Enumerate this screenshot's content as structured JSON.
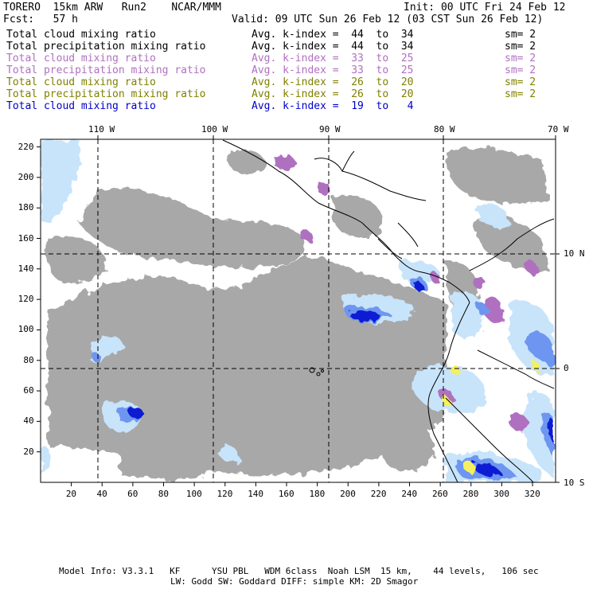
{
  "header": {
    "model": "TORERO  15km ARW   Run2    NCAR/MMM",
    "init": "Init: 00 UTC Fri 24 Feb 12",
    "fcst": "Fcst:   57 h",
    "valid": "Valid: 09 UTC Sun 26 Feb 12 (03 CST Sun 26 Feb 12)"
  },
  "fields": [
    {
      "name": "Total cloud mixing ratio",
      "kindex": "Avg. k-index =  44  to  34",
      "sm": "sm= 2",
      "color": "#000000"
    },
    {
      "name": "Total precipitation mixing ratio",
      "kindex": "Avg. k-index =  44  to  34",
      "sm": "sm= 2",
      "color": "#000000"
    },
    {
      "name": "Total cloud mixing ratio",
      "kindex": "Avg. k-index =  33  to  25",
      "sm": "sm= 2",
      "color": "#b070c0"
    },
    {
      "name": "Total precipitation mixing ratio",
      "kindex": "Avg. k-index =  33  to  25",
      "sm": "sm= 2",
      "color": "#b070c0"
    },
    {
      "name": "Total cloud mixing ratio",
      "kindex": "Avg. k-index =  26  to  20",
      "sm": "sm= 2",
      "color": "#808000"
    },
    {
      "name": "Total precipitation mixing ratio",
      "kindex": "Avg. k-index =  26  to  20",
      "sm": "sm= 2",
      "color": "#808000"
    },
    {
      "name": "Total cloud mixing ratio",
      "kindex": "Avg. k-index =  19  to   4",
      "sm": "",
      "color": "#0000cc"
    }
  ],
  "axes": {
    "lon_labels": [
      "110 W",
      "100 W",
      "90 W",
      "80 W",
      "70 W"
    ],
    "lat_labels": [
      "10 N",
      "0",
      "10 S"
    ],
    "x_ticks": [
      "20",
      "40",
      "60",
      "80",
      "100",
      "120",
      "140",
      "160",
      "180",
      "200",
      "220",
      "240",
      "260",
      "280",
      "300",
      "320"
    ],
    "y_ticks": [
      "220",
      "200",
      "180",
      "160",
      "140",
      "120",
      "100",
      "80",
      "60",
      "40",
      "20"
    ],
    "x_range": [
      0,
      335
    ],
    "y_range": [
      0,
      225
    ]
  },
  "colors": {
    "gray_cloud": "#a8a8a8",
    "purple": "#b070c0",
    "light_blue": "#c8e4fb",
    "mid_blue": "#6e96f0",
    "deep_blue": "#0a1ad2",
    "yellow": "#f4f060"
  },
  "footer": {
    "line1": "Model Info: V3.3.1   KF      YSU PBL   WDM 6class  Noah LSM  15 km,    44 levels,   106 sec",
    "line2": "LW: Godd SW: Goddard DIFF: simple KM: 2D Smagor"
  }
}
